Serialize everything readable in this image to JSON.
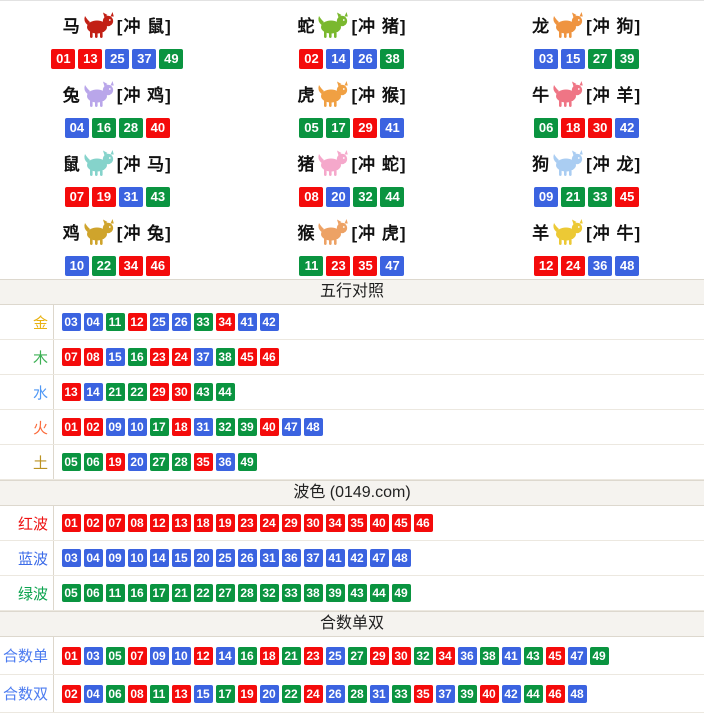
{
  "colors": {
    "ball-red": "#f40b0b",
    "ball-blue": "#3b63e0",
    "ball-green": "#0a9440",
    "header-bg": "#f5f3ef",
    "border": "#ddd8ce",
    "label-divider": "#ddd7cc"
  },
  "wave_colors": {
    "red": [
      "01",
      "02",
      "07",
      "08",
      "12",
      "13",
      "18",
      "19",
      "23",
      "24",
      "29",
      "30",
      "34",
      "35",
      "40",
      "45",
      "46"
    ],
    "blue": [
      "03",
      "04",
      "09",
      "10",
      "14",
      "15",
      "20",
      "25",
      "26",
      "31",
      "36",
      "37",
      "41",
      "42",
      "47",
      "48"
    ],
    "green": [
      "05",
      "06",
      "11",
      "16",
      "17",
      "21",
      "22",
      "27",
      "28",
      "32",
      "33",
      "38",
      "39",
      "43",
      "44",
      "49"
    ]
  },
  "zodiac": {
    "cells": [
      {
        "animal": "马",
        "icon": "horse-icon",
        "icon_color": "#c22015",
        "chong": "[冲 鼠]",
        "balls": [
          "01",
          "13",
          "25",
          "37",
          "49"
        ]
      },
      {
        "animal": "蛇",
        "icon": "snake-icon",
        "icon_color": "#7ab82e",
        "chong": "[冲 猪]",
        "balls": [
          "02",
          "14",
          "26",
          "38"
        ]
      },
      {
        "animal": "龙",
        "icon": "dragon-icon",
        "icon_color": "#ef9440",
        "chong": "[冲 狗]",
        "balls": [
          "03",
          "15",
          "27",
          "39"
        ]
      },
      {
        "animal": "兔",
        "icon": "rabbit-icon",
        "icon_color": "#b9a6ea",
        "chong": "[冲 鸡]",
        "balls": [
          "04",
          "16",
          "28",
          "40"
        ]
      },
      {
        "animal": "虎",
        "icon": "tiger-icon",
        "icon_color": "#f0a043",
        "chong": "[冲 猴]",
        "balls": [
          "05",
          "17",
          "29",
          "41"
        ]
      },
      {
        "animal": "牛",
        "icon": "ox-icon",
        "icon_color": "#ef7585",
        "chong": "[冲 羊]",
        "balls": [
          "06",
          "18",
          "30",
          "42"
        ]
      },
      {
        "animal": "鼠",
        "icon": "rat-icon",
        "icon_color": "#85d3cb",
        "chong": "[冲 马]",
        "balls": [
          "07",
          "19",
          "31",
          "43"
        ]
      },
      {
        "animal": "猪",
        "icon": "pig-icon",
        "icon_color": "#f5a8cb",
        "chong": "[冲 蛇]",
        "balls": [
          "08",
          "20",
          "32",
          "44"
        ]
      },
      {
        "animal": "狗",
        "icon": "dog-icon",
        "icon_color": "#aacdf2",
        "chong": "[冲 龙]",
        "balls": [
          "09",
          "21",
          "33",
          "45"
        ]
      },
      {
        "animal": "鸡",
        "icon": "rooster-icon",
        "icon_color": "#cfa42c",
        "chong": "[冲 兔]",
        "balls": [
          "10",
          "22",
          "34",
          "46"
        ]
      },
      {
        "animal": "猴",
        "icon": "monkey-icon",
        "icon_color": "#eda265",
        "chong": "[冲 虎]",
        "balls": [
          "11",
          "23",
          "35",
          "47"
        ]
      },
      {
        "animal": "羊",
        "icon": "goat-icon",
        "icon_color": "#ecc935",
        "chong": "[冲 牛]",
        "balls": [
          "12",
          "24",
          "36",
          "48"
        ]
      }
    ]
  },
  "sections": [
    {
      "title": "五行对照",
      "rows": [
        {
          "label": "金",
          "label_color": "#e8b212",
          "balls": [
            "03",
            "04",
            "11",
            "12",
            "25",
            "26",
            "33",
            "34",
            "41",
            "42"
          ]
        },
        {
          "label": "木",
          "label_color": "#3cb054",
          "balls": [
            "07",
            "08",
            "15",
            "16",
            "23",
            "24",
            "37",
            "38",
            "45",
            "46"
          ]
        },
        {
          "label": "水",
          "label_color": "#4e97f5",
          "balls": [
            "13",
            "14",
            "21",
            "22",
            "29",
            "30",
            "43",
            "44"
          ]
        },
        {
          "label": "火",
          "label_color": "#fb6b3c",
          "balls": [
            "01",
            "02",
            "09",
            "10",
            "17",
            "18",
            "31",
            "32",
            "39",
            "40",
            "47",
            "48"
          ]
        },
        {
          "label": "土",
          "label_color": "#bb9222",
          "balls": [
            "05",
            "06",
            "19",
            "20",
            "27",
            "28",
            "35",
            "36",
            "49"
          ]
        }
      ]
    },
    {
      "title": "波色 (0149.com)",
      "rows": [
        {
          "label": "红波",
          "label_color": "#ee1111",
          "balls": [
            "01",
            "02",
            "07",
            "08",
            "12",
            "13",
            "18",
            "19",
            "23",
            "24",
            "29",
            "30",
            "34",
            "35",
            "40",
            "45",
            "46"
          ]
        },
        {
          "label": "蓝波",
          "label_color": "#3b6be8",
          "balls": [
            "03",
            "04",
            "09",
            "10",
            "14",
            "15",
            "20",
            "25",
            "26",
            "31",
            "36",
            "37",
            "41",
            "42",
            "47",
            "48"
          ]
        },
        {
          "label": "绿波",
          "label_color": "#0aa34e",
          "balls": [
            "05",
            "06",
            "11",
            "16",
            "17",
            "21",
            "22",
            "27",
            "28",
            "32",
            "33",
            "38",
            "39",
            "43",
            "44",
            "49"
          ]
        }
      ]
    },
    {
      "title": "合数单双",
      "rows": [
        {
          "label": "合数单",
          "label_color": "#4b7bf0",
          "balls": [
            "01",
            "03",
            "05",
            "07",
            "09",
            "10",
            "12",
            "14",
            "16",
            "18",
            "21",
            "23",
            "25",
            "27",
            "29",
            "30",
            "32",
            "34",
            "36",
            "38",
            "41",
            "43",
            "45",
            "47",
            "49"
          ]
        },
        {
          "label": "合数双",
          "label_color": "#4b7bf0",
          "balls": [
            "02",
            "04",
            "06",
            "08",
            "11",
            "13",
            "15",
            "17",
            "19",
            "20",
            "22",
            "24",
            "26",
            "28",
            "31",
            "33",
            "35",
            "37",
            "39",
            "40",
            "42",
            "44",
            "46",
            "48"
          ]
        }
      ]
    }
  ]
}
